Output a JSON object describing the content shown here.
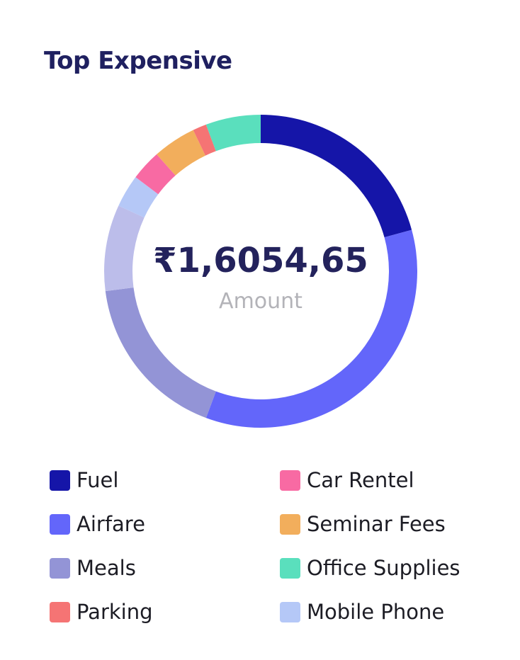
{
  "card": {
    "title": "Top Expensive",
    "center_amount": "₹1,6054,65",
    "center_label": "Amount"
  },
  "chart_data": {
    "type": "pie",
    "variant": "donut",
    "categories": [
      "Fuel",
      "Airfare",
      "Meals",
      "Parking",
      "Car Rentel",
      "Seminar Fees",
      "Office Supplies",
      "Mobile Phone"
    ],
    "values": [
      19,
      32,
      24,
      1.3,
      2.9,
      4.1,
      5.2,
      3.1
    ],
    "colors": [
      "#1515a8",
      "#6366fa",
      "#9394d6",
      "#f57474",
      "#f86aa3",
      "#f2ae5c",
      "#5adfbd",
      "#b5c8f7"
    ],
    "series_order_clockwise_from_top": [
      "Fuel",
      "Airfare",
      "Meals",
      "Meals (light)",
      "Mobile Phone",
      "Car Rentel",
      "Seminar Fees",
      "Parking",
      "Office Supplies"
    ],
    "light_meals_color": "#bcbdea",
    "legend_position": "bottom",
    "legend_columns": [
      [
        "Fuel",
        "Airfare",
        "Meals",
        "Parking"
      ],
      [
        "Car Rentel",
        "Seminar Fees",
        "Office Supplies",
        "Mobile Phone"
      ]
    ]
  }
}
